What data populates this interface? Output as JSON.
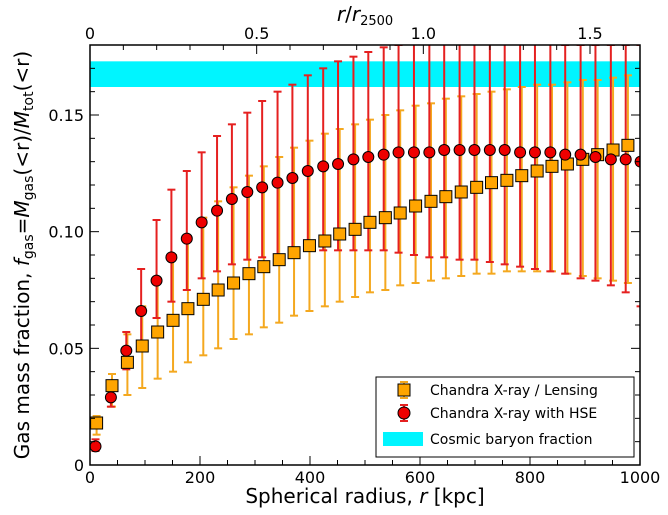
{
  "chart_data": {
    "type": "scatter",
    "xlabel": {
      "main": "Spherical radius, ",
      "var": "r",
      "unit": " [kpc]"
    },
    "ylabel": {
      "prefix": "Gas mass fraction,  ",
      "f": "f",
      "gas": "gas",
      "eq": "=",
      "M": "M",
      "tot": "tot",
      "lt_r": "(<r)"
    },
    "top_xlabel": {
      "r": "r",
      "slash": "/",
      "r2": "r",
      "sub": "2500"
    },
    "xlim": [
      0,
      1000
    ],
    "ylim": [
      0,
      0.18
    ],
    "top_xlim": [
      0,
      1.65
    ],
    "x_ticks": [
      0,
      200,
      400,
      600,
      800,
      1000
    ],
    "x_tick_labels": [
      "0",
      "200",
      "400",
      "600",
      "800",
      "1000"
    ],
    "y_ticks": [
      0,
      0.05,
      0.1,
      0.15
    ],
    "y_tick_labels": [
      "0",
      "0.05",
      "0.10",
      "0.15"
    ],
    "top_ticks": [
      0,
      0.5,
      1.0,
      1.5
    ],
    "top_tick_labels": [
      "0",
      "0.5",
      "1.0",
      "1.5"
    ],
    "band": {
      "name": "Cosmic baryon fraction",
      "low": 0.162,
      "high": 0.173,
      "color": "#00f5ff"
    },
    "series": [
      {
        "name": "Chandra X-ray / Lensing",
        "marker": "square",
        "color": "#ffa500",
        "errcolor": "#f4a81f",
        "x": [
          12,
          40,
          68,
          95,
          123,
          151,
          178,
          206,
          233,
          261,
          289,
          316,
          344,
          371,
          399,
          427,
          454,
          482,
          509,
          537,
          564,
          592,
          620,
          647,
          675,
          703,
          730,
          758,
          785,
          813,
          840,
          868,
          896,
          923,
          951,
          978
        ],
        "y": [
          0.018,
          0.034,
          0.044,
          0.051,
          0.057,
          0.062,
          0.067,
          0.071,
          0.075,
          0.078,
          0.082,
          0.085,
          0.088,
          0.091,
          0.094,
          0.096,
          0.099,
          0.101,
          0.104,
          0.106,
          0.108,
          0.111,
          0.113,
          0.115,
          0.117,
          0.119,
          0.121,
          0.122,
          0.124,
          0.126,
          0.128,
          0.129,
          0.131,
          0.133,
          0.135,
          0.137
        ],
        "lo": [
          0.013,
          0.025,
          0.03,
          0.033,
          0.037,
          0.04,
          0.044,
          0.047,
          0.05,
          0.054,
          0.056,
          0.059,
          0.061,
          0.064,
          0.066,
          0.068,
          0.07,
          0.072,
          0.074,
          0.075,
          0.077,
          0.078,
          0.079,
          0.08,
          0.081,
          0.082,
          0.082,
          0.083,
          0.083,
          0.083,
          0.083,
          0.082,
          0.081,
          0.08,
          0.079,
          0.078
        ],
        "hi": [
          0.021,
          0.039,
          0.056,
          0.068,
          0.08,
          0.09,
          0.098,
          0.106,
          0.113,
          0.119,
          0.124,
          0.128,
          0.132,
          0.136,
          0.139,
          0.142,
          0.144,
          0.146,
          0.148,
          0.15,
          0.152,
          0.154,
          0.155,
          0.157,
          0.158,
          0.159,
          0.16,
          0.161,
          0.162,
          0.163,
          0.163,
          0.164,
          0.165,
          0.165,
          0.166,
          0.167
        ]
      },
      {
        "name": "Chandra X-ray with HSE",
        "marker": "circle",
        "color": "#ee0000",
        "errcolor": "#e52020",
        "x": [
          10,
          38,
          66,
          93,
          121,
          148,
          176,
          203,
          231,
          258,
          286,
          313,
          341,
          368,
          396,
          424,
          451,
          479,
          506,
          534,
          561,
          589,
          617,
          644,
          672,
          699,
          727,
          754,
          782,
          809,
          837,
          864,
          892,
          919,
          947,
          974,
          1001
        ],
        "y": [
          0.008,
          0.029,
          0.049,
          0.066,
          0.079,
          0.089,
          0.097,
          0.104,
          0.109,
          0.114,
          0.117,
          0.119,
          0.121,
          0.123,
          0.126,
          0.128,
          0.129,
          0.131,
          0.132,
          0.133,
          0.134,
          0.134,
          0.134,
          0.135,
          0.135,
          0.135,
          0.135,
          0.135,
          0.134,
          0.134,
          0.134,
          0.133,
          0.133,
          0.132,
          0.131,
          0.131,
          0.13
        ],
        "lo": [
          0.006,
          0.025,
          0.041,
          0.05,
          0.063,
          0.07,
          0.075,
          0.08,
          0.083,
          0.086,
          0.088,
          0.089,
          0.09,
          0.091,
          0.092,
          0.092,
          0.092,
          0.092,
          0.092,
          0.092,
          0.091,
          0.09,
          0.089,
          0.089,
          0.088,
          0.088,
          0.087,
          0.086,
          0.085,
          0.084,
          0.083,
          0.082,
          0.08,
          0.079,
          0.077,
          0.074,
          0.068
        ],
        "hi": [
          0.011,
          0.034,
          0.057,
          0.084,
          0.105,
          0.118,
          0.126,
          0.134,
          0.141,
          0.146,
          0.151,
          0.156,
          0.16,
          0.163,
          0.167,
          0.17,
          0.173,
          0.175,
          0.177,
          0.179,
          0.18,
          0.181,
          0.182,
          0.183,
          0.183,
          0.184,
          0.184,
          0.184,
          0.183,
          0.182,
          0.181,
          0.18,
          0.18,
          0.18,
          0.18,
          0.18,
          0.18
        ]
      }
    ],
    "legend": {
      "placement": "bottom-right"
    }
  }
}
